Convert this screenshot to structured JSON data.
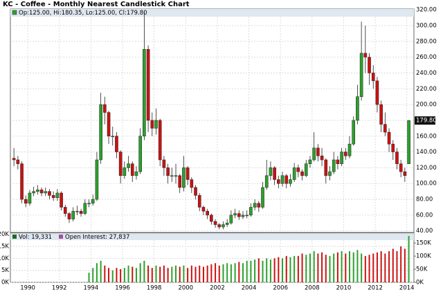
{
  "chart_data": {
    "type": "candlestick",
    "title": "KC - Coffee - Monthly Nearest Candlestick Chart",
    "price_legend": "Op:125.00, Hi:180.35, Lo:125.00, Cl:179.80",
    "volume_legend": "Vol: 19,331",
    "oi_legend": "Open Interest: 27,837",
    "last_label": "179.80",
    "up_color": "#2ca02c",
    "down_color": "#cc1111",
    "vol_legend_color": "#1f6b1f",
    "oi_legend_color": "#a050a0",
    "grid": true,
    "x": [
      1989.125,
      1989.375,
      1989.625,
      1989.875,
      1990.125,
      1990.375,
      1990.625,
      1990.875,
      1991.125,
      1991.375,
      1991.625,
      1991.875,
      1992.125,
      1992.375,
      1992.625,
      1992.875,
      1993.125,
      1993.375,
      1993.625,
      1993.875,
      1994.125,
      1994.375,
      1994.625,
      1994.875,
      1995.125,
      1995.375,
      1995.625,
      1995.875,
      1996.125,
      1996.375,
      1996.625,
      1996.875,
      1997.125,
      1997.375,
      1997.625,
      1997.875,
      1998.125,
      1998.375,
      1998.625,
      1998.875,
      1999.125,
      1999.375,
      1999.625,
      1999.875,
      2000.125,
      2000.375,
      2000.625,
      2000.875,
      2001.125,
      2001.375,
      2001.625,
      2001.875,
      2002.125,
      2002.375,
      2002.625,
      2002.875,
      2003.125,
      2003.375,
      2003.625,
      2003.875,
      2004.125,
      2004.375,
      2004.625,
      2004.875,
      2005.125,
      2005.375,
      2005.625,
      2005.875,
      2006.125,
      2006.375,
      2006.625,
      2006.875,
      2007.125,
      2007.375,
      2007.625,
      2007.875,
      2008.125,
      2008.375,
      2008.625,
      2008.875,
      2009.125,
      2009.375,
      2009.625,
      2009.875,
      2010.125,
      2010.375,
      2010.625,
      2010.875,
      2011.125,
      2011.375,
      2011.625,
      2011.875,
      2012.125,
      2012.375,
      2012.625,
      2012.875,
      2013.125,
      2013.375,
      2013.625,
      2013.875,
      2014.125
    ],
    "open": [
      132,
      130,
      125,
      80,
      75,
      88,
      90,
      92,
      88,
      90,
      85,
      82,
      88,
      70,
      62,
      55,
      65,
      65,
      62,
      75,
      75,
      80,
      130,
      200,
      190,
      160,
      160,
      140,
      110,
      120,
      125,
      110,
      115,
      160,
      270,
      180,
      170,
      180,
      130,
      120,
      110,
      110,
      110,
      95,
      120,
      105,
      95,
      85,
      70,
      65,
      60,
      52,
      48,
      45,
      48,
      50,
      60,
      62,
      58,
      60,
      60,
      70,
      75,
      70,
      95,
      110,
      120,
      105,
      100,
      110,
      100,
      105,
      120,
      115,
      110,
      125,
      130,
      145,
      135,
      130,
      110,
      115,
      130,
      125,
      140,
      135,
      150,
      180,
      210,
      265,
      260,
      240,
      230,
      200,
      175,
      165,
      150,
      140,
      125,
      115,
      125
    ],
    "high": [
      145,
      135,
      128,
      85,
      92,
      96,
      98,
      95,
      95,
      93,
      90,
      93,
      90,
      73,
      64,
      70,
      72,
      68,
      80,
      80,
      86,
      140,
      215,
      210,
      192,
      172,
      165,
      142,
      128,
      135,
      128,
      122,
      170,
      318,
      275,
      190,
      195,
      182,
      135,
      125,
      120,
      125,
      112,
      135,
      122,
      108,
      98,
      88,
      72,
      68,
      62,
      55,
      50,
      52,
      55,
      66,
      68,
      66,
      65,
      66,
      75,
      80,
      78,
      102,
      130,
      128,
      122,
      110,
      115,
      112,
      112,
      126,
      124,
      118,
      130,
      135,
      165,
      150,
      145,
      132,
      122,
      140,
      135,
      145,
      145,
      160,
      185,
      225,
      305,
      300,
      265,
      250,
      235,
      205,
      190,
      170,
      155,
      145,
      130,
      120,
      180.35
    ],
    "low": [
      122,
      118,
      75,
      70,
      72,
      84,
      86,
      84,
      84,
      80,
      78,
      78,
      66,
      58,
      50,
      52,
      60,
      58,
      60,
      70,
      72,
      78,
      125,
      175,
      150,
      148,
      132,
      100,
      106,
      115,
      102,
      105,
      112,
      155,
      165,
      160,
      162,
      122,
      110,
      100,
      102,
      100,
      88,
      90,
      98,
      88,
      80,
      65,
      60,
      55,
      48,
      44,
      42,
      42,
      45,
      48,
      56,
      54,
      55,
      56,
      58,
      66,
      64,
      68,
      92,
      104,
      98,
      94,
      96,
      94,
      96,
      102,
      108,
      104,
      108,
      120,
      128,
      128,
      122,
      100,
      104,
      112,
      118,
      122,
      130,
      132,
      148,
      175,
      205,
      240,
      225,
      220,
      190,
      165,
      160,
      140,
      130,
      118,
      108,
      102,
      125
    ],
    "close": [
      130,
      125,
      80,
      75,
      88,
      90,
      92,
      88,
      90,
      85,
      82,
      88,
      70,
      62,
      55,
      65,
      65,
      62,
      75,
      75,
      80,
      130,
      200,
      190,
      160,
      160,
      140,
      110,
      120,
      125,
      110,
      115,
      160,
      270,
      180,
      170,
      180,
      130,
      120,
      110,
      110,
      110,
      95,
      120,
      105,
      95,
      85,
      70,
      65,
      60,
      52,
      48,
      45,
      48,
      50,
      60,
      62,
      58,
      60,
      60,
      70,
      75,
      70,
      95,
      110,
      120,
      105,
      100,
      110,
      100,
      105,
      120,
      115,
      110,
      125,
      130,
      145,
      135,
      130,
      110,
      115,
      130,
      125,
      140,
      135,
      150,
      180,
      210,
      265,
      260,
      240,
      230,
      200,
      175,
      165,
      150,
      140,
      125,
      115,
      110,
      179.8
    ],
    "volume": [
      null,
      null,
      null,
      null,
      null,
      null,
      null,
      null,
      null,
      null,
      null,
      null,
      null,
      null,
      null,
      null,
      null,
      null,
      null,
      4000,
      6000,
      8000,
      9000,
      7000,
      6000,
      5000,
      6000,
      5500,
      6000,
      7000,
      6500,
      6000,
      8000,
      9000,
      7000,
      6000,
      7000,
      6500,
      7000,
      6000,
      6500,
      7000,
      6500,
      7000,
      6000,
      7000,
      6500,
      7000,
      6500,
      7000,
      7500,
      8000,
      7000,
      7500,
      8000,
      7500,
      8000,
      8500,
      8000,
      9000,
      9000,
      9500,
      10000,
      9000,
      10000,
      9500,
      10000,
      10500,
      10000,
      11000,
      10500,
      11000,
      11000,
      12000,
      11500,
      12000,
      13000,
      12000,
      12500,
      11500,
      11000,
      12000,
      12500,
      13000,
      12000,
      13000,
      12500,
      13500,
      12000,
      11000,
      11500,
      12000,
      12500,
      13000,
      12000,
      13000,
      14000,
      13000,
      15000,
      14000,
      19331
    ],
    "xlim": [
      1988.9,
      2014.45
    ],
    "xticks": [
      1990,
      1992,
      1994,
      1996,
      1998,
      2000,
      2002,
      2004,
      2006,
      2008,
      2010,
      2012,
      2014
    ],
    "ylim": [
      38,
      321
    ],
    "yticks": [
      {
        "value": 40,
        "label": "40.00"
      },
      {
        "value": 60,
        "label": "60.00"
      },
      {
        "value": 80,
        "label": "80.00"
      },
      {
        "value": 100,
        "label": "100.00"
      },
      {
        "value": 120,
        "label": "120.00"
      },
      {
        "value": 140,
        "label": "140.00"
      },
      {
        "value": 160,
        "label": "160.00"
      },
      {
        "value": 180,
        "label": "180.00"
      },
      {
        "value": 200,
        "label": "200.00"
      },
      {
        "value": 220,
        "label": "220.00"
      },
      {
        "value": 240,
        "label": "240.00"
      },
      {
        "value": 260,
        "label": "260.00"
      },
      {
        "value": 280,
        "label": "280.00"
      },
      {
        "value": 300,
        "label": "300.00"
      },
      {
        "value": 320,
        "label": "320.00"
      }
    ],
    "vol_ylim": [
      0,
      20500
    ],
    "vol_yticks": [
      {
        "value": 0,
        "label": "0K"
      },
      {
        "value": 5000,
        "label": "5K"
      },
      {
        "value": 10000,
        "label": "10K"
      },
      {
        "value": 15000,
        "label": "15K"
      },
      {
        "value": 20000,
        "label": "20K"
      }
    ],
    "oi_ylim": [
      0,
      187500
    ],
    "oi_yticks": [
      {
        "value": 0,
        "label": "0K"
      },
      {
        "value": 50000,
        "label": "50K"
      },
      {
        "value": 100000,
        "label": "100K"
      },
      {
        "value": 150000,
        "label": "150K"
      }
    ]
  }
}
